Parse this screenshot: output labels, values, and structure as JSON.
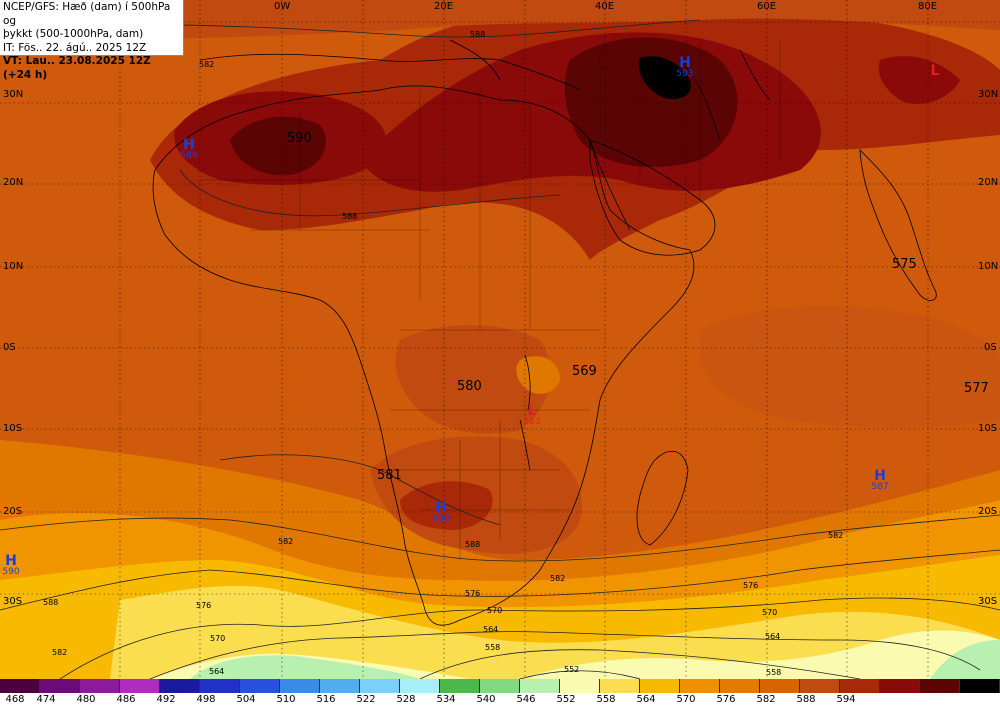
{
  "header": {
    "line1": "NCEP/GFS: Hæð (dam) í 500hPa og",
    "line2": "þykkt (500-1000hPa, dam)",
    "line3": "IT: Fös.. 22. ágú.. 2025 12Z",
    "line4": "VT: Lau.. 23.08.2025 12Z (+24 h)"
  },
  "longitude_labels": [
    "0W",
    "20E",
    "40E",
    "60E",
    "80E"
  ],
  "latitude_labels": [
    "30N",
    "20N",
    "10N",
    "0S",
    "10S",
    "20S",
    "30S"
  ],
  "field_labels": [
    "590",
    "575",
    "580",
    "569",
    "577",
    "581"
  ],
  "pressure_centers": [
    {
      "symbol": "H",
      "value": "589",
      "color": "#1a3fd6"
    },
    {
      "symbol": "H",
      "value": "593",
      "color": "#1a3fd6"
    },
    {
      "symbol": "L",
      "value": "",
      "color": "#e02020"
    },
    {
      "symbol": "L",
      "value": "583",
      "color": "#e02020"
    },
    {
      "symbol": "H",
      "value": "590",
      "color": "#1a3fd6"
    },
    {
      "symbol": "H",
      "value": "587",
      "color": "#1a3fd6"
    },
    {
      "symbol": "H",
      "value": "590",
      "color": "#1a3fd6"
    }
  ],
  "thickness_contour_labels": [
    "588",
    "582",
    "576",
    "570",
    "564",
    "558",
    "552"
  ],
  "colorbar": {
    "colors": [
      "#4a0040",
      "#6b0a78",
      "#8c1a9a",
      "#b02cc0",
      "#1a1aa0",
      "#2030c8",
      "#2a50e0",
      "#3a8ae8",
      "#50aef0",
      "#7ad0f8",
      "#a8eef8",
      "#4ab84a",
      "#82d882",
      "#b8f0b0",
      "#fafab0",
      "#fade50",
      "#f8b800",
      "#f09000",
      "#e67a00",
      "#d86400",
      "#c04a10",
      "#a82808",
      "#8a0a0a",
      "#5a0404",
      "#000000"
    ],
    "labels": [
      "468",
      "474",
      "480",
      "486",
      "492",
      "498",
      "504",
      "510",
      "516",
      "522",
      "528",
      "534",
      "540",
      "546",
      "552",
      "558",
      "564",
      "570",
      "576",
      "582",
      "588",
      "594"
    ]
  }
}
